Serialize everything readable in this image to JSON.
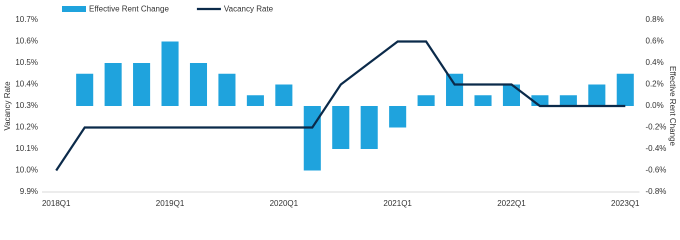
{
  "chart_data": {
    "type": "bar-line",
    "categories": [
      "2018Q1",
      null,
      null,
      null,
      "2019Q1",
      null,
      null,
      null,
      "2020Q1",
      null,
      null,
      null,
      "2021Q1",
      null,
      null,
      null,
      "2022Q1",
      null,
      null,
      null,
      "2023Q1"
    ],
    "series": [
      {
        "name": "Effective Rent Change",
        "type": "bar",
        "axis": "y2",
        "color": "#1fa3dd",
        "values": [
          null,
          0.3,
          0.4,
          0.4,
          0.6,
          0.4,
          0.3,
          0.1,
          0.2,
          -0.6,
          -0.4,
          -0.4,
          -0.2,
          0.1,
          0.3,
          0.1,
          0.2,
          0.1,
          0.1,
          0.2,
          0.3
        ]
      },
      {
        "name": "Vacancy Rate",
        "type": "line",
        "axis": "y",
        "color": "#0b2a4a",
        "values": [
          10.0,
          10.2,
          10.2,
          10.2,
          10.2,
          10.2,
          10.2,
          10.2,
          10.2,
          10.2,
          10.4,
          10.5,
          10.6,
          10.6,
          10.4,
          10.4,
          10.4,
          10.3,
          10.3,
          10.3,
          10.3
        ]
      }
    ],
    "ylabel": "Vacancy Rate",
    "y2label": "Effective Rent Change",
    "ylim": [
      9.9,
      10.7
    ],
    "yticks": [
      {
        "value": 9.9,
        "label": "9.9%"
      },
      {
        "value": 10.0,
        "label": "10.0%"
      },
      {
        "value": 10.1,
        "label": "10.1%"
      },
      {
        "value": 10.2,
        "label": "10.2%"
      },
      {
        "value": 10.3,
        "label": "10.3%"
      },
      {
        "value": 10.4,
        "label": "10.4%"
      },
      {
        "value": 10.5,
        "label": "10.5%"
      },
      {
        "value": 10.6,
        "label": "10.6%"
      },
      {
        "value": 10.7,
        "label": "10.7%"
      }
    ],
    "y2lim": [
      -0.8,
      0.8
    ],
    "y2ticks": [
      {
        "value": -0.8,
        "label": "-0.8%"
      },
      {
        "value": -0.6,
        "label": "-0.6%"
      },
      {
        "value": -0.4,
        "label": "-0.4%"
      },
      {
        "value": -0.2,
        "label": "-0.2%"
      },
      {
        "value": 0.0,
        "label": "0.0%"
      },
      {
        "value": 0.2,
        "label": "0.2%"
      },
      {
        "value": 0.4,
        "label": "0.4%"
      },
      {
        "value": 0.6,
        "label": "0.6%"
      },
      {
        "value": 0.8,
        "label": "0.8%"
      }
    ],
    "legend": "top-left",
    "grid": false
  }
}
